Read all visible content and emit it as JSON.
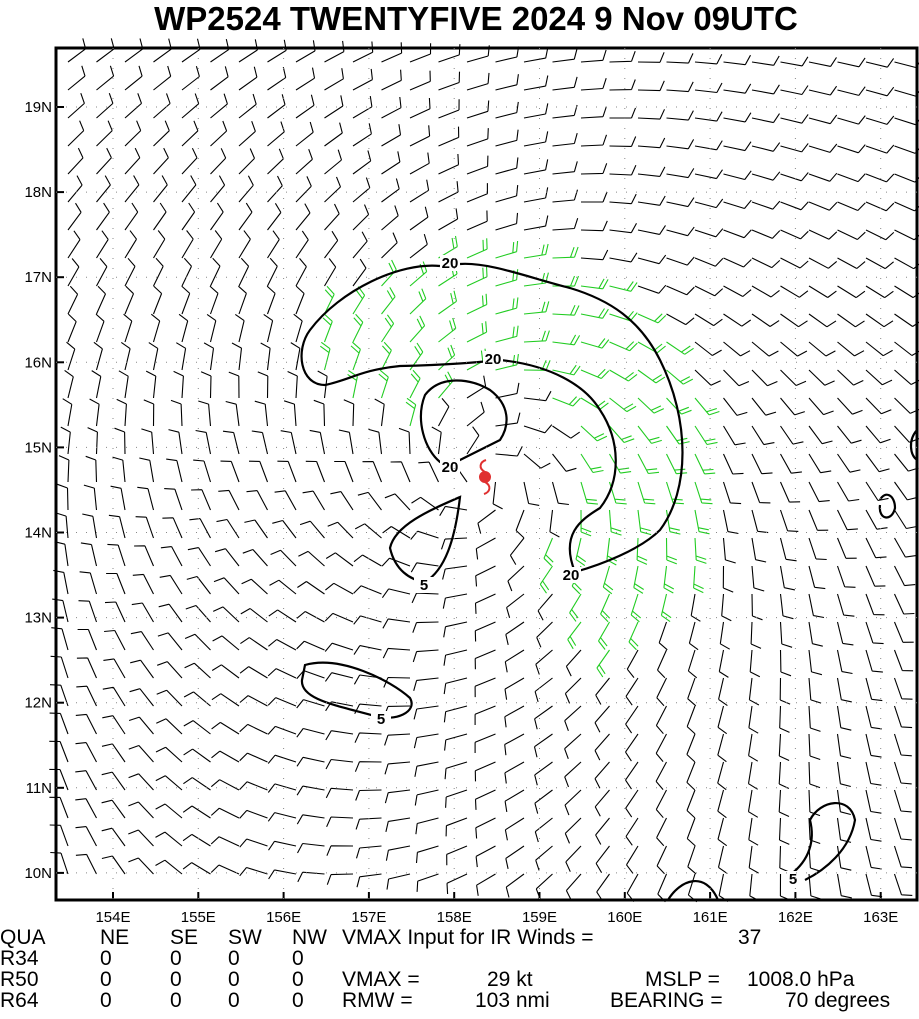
{
  "title": "WP2524 TWENTYFIVE 2024  9 Nov 09UTC",
  "map": {
    "lat_labels": [
      "19N",
      "18N",
      "17N",
      "16N",
      "15N",
      "14N",
      "13N",
      "12N",
      "11N",
      "10N"
    ],
    "lon_labels": [
      "154E",
      "155E",
      "156E",
      "157E",
      "158E",
      "159E",
      "160E",
      "161E",
      "162E",
      "163E"
    ],
    "contour_labels": [
      "20",
      "20",
      "20",
      "20",
      "5",
      "5",
      "5"
    ]
  },
  "info": {
    "header": [
      "QUA",
      "NE",
      "SE",
      "SW",
      "NW",
      "VMAX Input for IR Winds =",
      37
    ],
    "r34": [
      "R34",
      0,
      0,
      0,
      0
    ],
    "r50": [
      "R50",
      0,
      0,
      0,
      0,
      "VMAX =",
      "29 kt",
      "MSLP =",
      "1008.0 hPa"
    ],
    "r64": [
      "R64",
      0,
      0,
      0,
      0,
      "RMW =",
      "103 nmi",
      "BEARING =",
      "70 degrees"
    ]
  }
}
